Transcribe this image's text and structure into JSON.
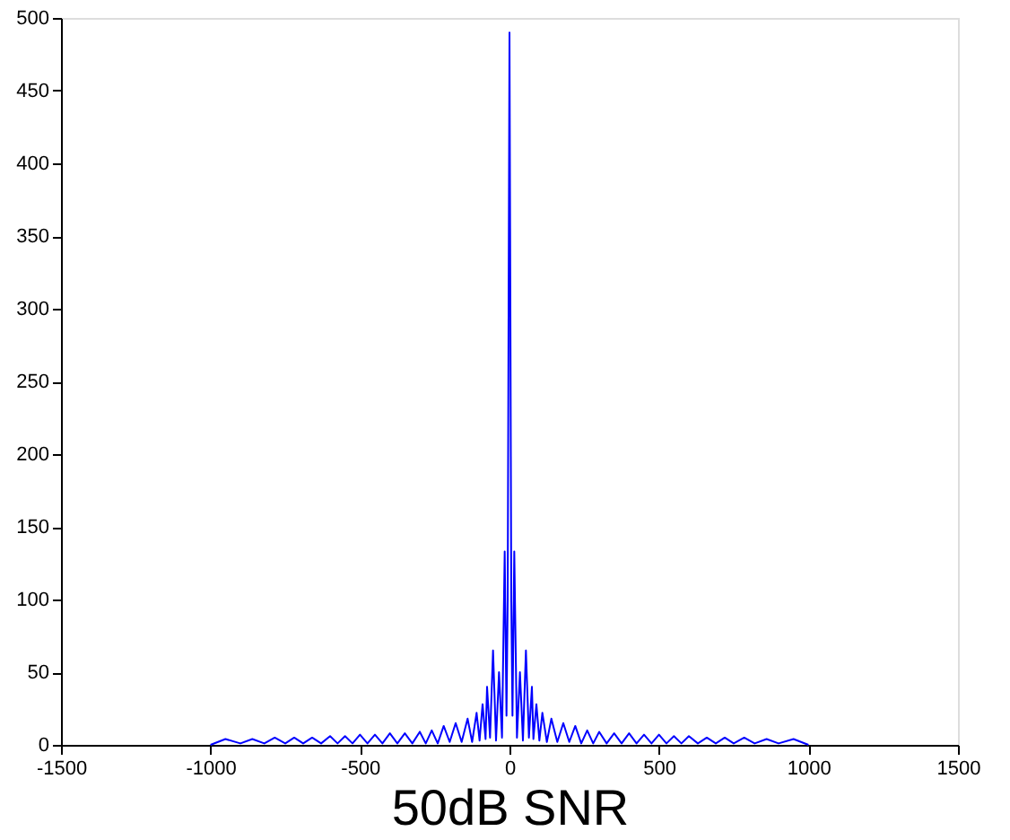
{
  "chart_data": {
    "type": "line",
    "xlabel": "50dB SNR",
    "x": [
      -1000,
      -950,
      -900,
      -860,
      -820,
      -785,
      -750,
      -720,
      -690,
      -660,
      -630,
      -600,
      -575,
      -550,
      -525,
      -500,
      -475,
      -450,
      -425,
      -400,
      -375,
      -350,
      -325,
      -300,
      -280,
      -260,
      -240,
      -220,
      -200,
      -180,
      -160,
      -140,
      -125,
      -110,
      -100,
      -90,
      -80,
      -75,
      -65,
      -55,
      -45,
      -35,
      -25,
      -16,
      -10,
      -6,
      -3,
      0,
      3,
      6,
      10,
      16,
      25,
      35,
      45,
      55,
      65,
      75,
      80,
      90,
      100,
      110,
      125,
      140,
      160,
      180,
      200,
      220,
      240,
      260,
      280,
      300,
      325,
      350,
      375,
      400,
      425,
      450,
      475,
      500,
      525,
      550,
      575,
      600,
      630,
      660,
      690,
      720,
      750,
      785,
      820,
      860,
      900,
      950,
      1000
    ],
    "series": [
      {
        "color": "#0000ff",
        "values": [
          0,
          4,
          1,
          4,
          1,
          5,
          1,
          5,
          1,
          5,
          1,
          6,
          1,
          6,
          1,
          7,
          1,
          7,
          1,
          8,
          1,
          8,
          1,
          9,
          1,
          10,
          1,
          13,
          2,
          15,
          2,
          18,
          2,
          22,
          3,
          28,
          4,
          40,
          5,
          65,
          3,
          50,
          5,
          133,
          20,
          100,
          300,
          490,
          300,
          100,
          20,
          133,
          5,
          50,
          3,
          65,
          5,
          40,
          4,
          28,
          3,
          22,
          2,
          18,
          2,
          15,
          2,
          13,
          1,
          10,
          1,
          9,
          1,
          8,
          1,
          8,
          1,
          7,
          1,
          7,
          1,
          6,
          1,
          6,
          1,
          5,
          1,
          5,
          1,
          5,
          1,
          4,
          1,
          4,
          0
        ]
      }
    ],
    "xlim": [
      -1500,
      1500
    ],
    "xticks": [
      -1500,
      -1000,
      -500,
      0,
      500,
      1000,
      1500
    ],
    "ylim": [
      0,
      500
    ],
    "yticks": [
      0,
      50,
      100,
      150,
      200,
      250,
      300,
      350,
      400,
      450,
      500
    ],
    "grid": false,
    "legend": false,
    "marker": "none",
    "line_style": "solid"
  }
}
